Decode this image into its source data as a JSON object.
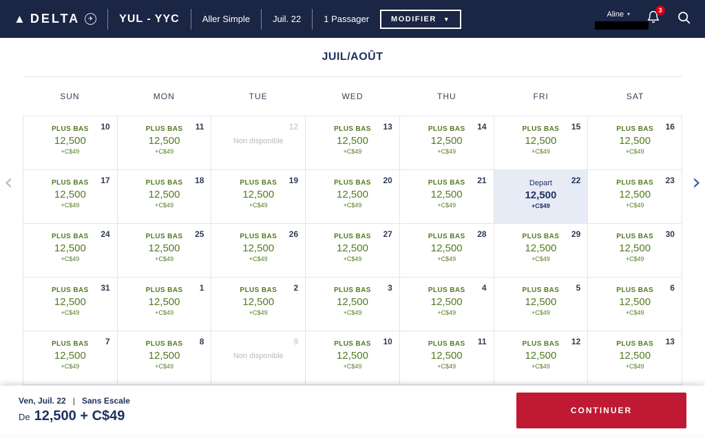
{
  "header": {
    "brand": "DELTA",
    "route": "YUL - YYC",
    "trip_type": "Aller Simple",
    "date": "Juil. 22",
    "passengers": "1 Passager",
    "modify_label": "MODIFIER",
    "user_name": "Aline",
    "notification_count": "3"
  },
  "calendar": {
    "title": "JUIL/AOÛT",
    "day_headers": [
      "SUN",
      "MON",
      "TUE",
      "WED",
      "THU",
      "FRI",
      "SAT"
    ],
    "fare_label": "PLUS BAS",
    "price": "12,500",
    "tax": "+C$49",
    "unavailable_label": "Non disponible",
    "depart_label": "Depart",
    "weeks": [
      [
        {
          "day": 10,
          "state": "available"
        },
        {
          "day": 11,
          "state": "available"
        },
        {
          "day": 12,
          "state": "unavailable"
        },
        {
          "day": 13,
          "state": "available"
        },
        {
          "day": 14,
          "state": "available"
        },
        {
          "day": 15,
          "state": "available"
        },
        {
          "day": 16,
          "state": "available"
        }
      ],
      [
        {
          "day": 17,
          "state": "available"
        },
        {
          "day": 18,
          "state": "available"
        },
        {
          "day": 19,
          "state": "available"
        },
        {
          "day": 20,
          "state": "available"
        },
        {
          "day": 21,
          "state": "available"
        },
        {
          "day": 22,
          "state": "depart"
        },
        {
          "day": 23,
          "state": "available"
        }
      ],
      [
        {
          "day": 24,
          "state": "available"
        },
        {
          "day": 25,
          "state": "available"
        },
        {
          "day": 26,
          "state": "available"
        },
        {
          "day": 27,
          "state": "available"
        },
        {
          "day": 28,
          "state": "available"
        },
        {
          "day": 29,
          "state": "available"
        },
        {
          "day": 30,
          "state": "available"
        }
      ],
      [
        {
          "day": 31,
          "state": "available"
        },
        {
          "day": 1,
          "state": "available"
        },
        {
          "day": 2,
          "state": "available"
        },
        {
          "day": 3,
          "state": "available"
        },
        {
          "day": 4,
          "state": "available"
        },
        {
          "day": 5,
          "state": "available"
        },
        {
          "day": 6,
          "state": "available"
        }
      ],
      [
        {
          "day": 7,
          "state": "available"
        },
        {
          "day": 8,
          "state": "available"
        },
        {
          "day": 9,
          "state": "unavailable"
        },
        {
          "day": 10,
          "state": "available"
        },
        {
          "day": 11,
          "state": "available"
        },
        {
          "day": 12,
          "state": "available"
        },
        {
          "day": 13,
          "state": "available"
        }
      ]
    ]
  },
  "footer": {
    "date_line": "Ven, Juil. 22",
    "separator": "|",
    "stop_info": "Sans Escale",
    "price_prefix": "De",
    "price_display": "12,500 + C$49",
    "continue_label": "CONTINUER"
  },
  "colors": {
    "navbar_bg": "#1b2544",
    "fare_green": "#527a21",
    "navy_text": "#1d3160",
    "selected_cell_bg": "#e7ebf5",
    "continue_red": "#c01933",
    "badge_red": "#d0021b",
    "unavailable_gray": "#b4b8c2"
  }
}
